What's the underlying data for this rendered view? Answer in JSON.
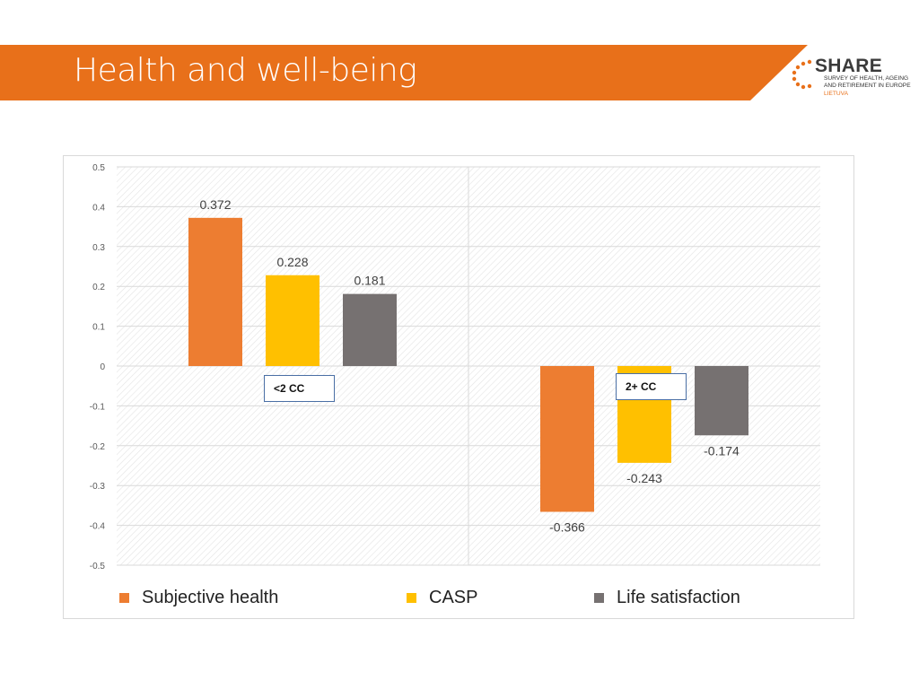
{
  "header": {
    "title": "Health and well-being",
    "band_color": "#e8701a"
  },
  "logo": {
    "word": "SHARE",
    "line1": "Survey of Health, Ageing",
    "line2": "and Retirement in Europe",
    "country": "Lietuva"
  },
  "chart_data": {
    "type": "bar",
    "title": "",
    "xlabel": "",
    "ylabel": "",
    "ylim": [
      -0.5,
      0.5
    ],
    "yticks": [
      "0.5",
      "0.4",
      "0.3",
      "0.2",
      "0.1",
      "0",
      "-0.1",
      "-0.2",
      "-0.3",
      "-0.4",
      "-0.5"
    ],
    "categories": [
      "<2 CC",
      "2+ CC"
    ],
    "series": [
      {
        "name": "Subjective health",
        "color": "#ed7d31",
        "values": [
          0.372,
          -0.366
        ],
        "labels": [
          "0.372",
          "-0.366"
        ]
      },
      {
        "name": "CASP",
        "color": "#ffc000",
        "values": [
          0.228,
          -0.243
        ],
        "labels": [
          "0.228",
          "-0.243"
        ]
      },
      {
        "name": "Life satisfaction",
        "color": "#767171",
        "values": [
          0.181,
          -0.174
        ],
        "labels": [
          "0.181",
          "-0.174"
        ]
      }
    ],
    "legend_position": "bottom",
    "grid": true
  }
}
